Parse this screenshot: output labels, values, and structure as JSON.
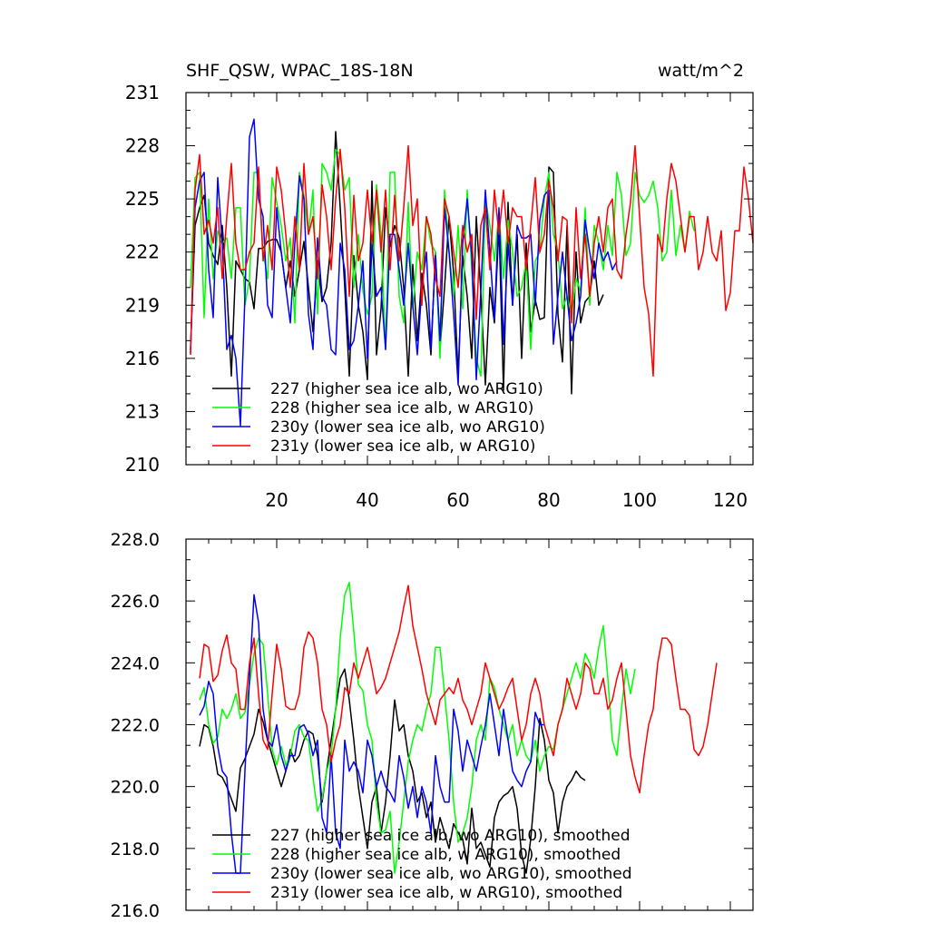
{
  "chart_data": [
    {
      "type": "line",
      "title": "SHF_QSW, WPAC_18S-18N",
      "units_label": "watt/m^2",
      "xlim": [
        0,
        125
      ],
      "ylim": [
        210,
        231
      ],
      "xticks": [
        20,
        40,
        60,
        80,
        100,
        120
      ],
      "xtick_labels": [
        "20",
        "40",
        "60",
        "80",
        "100",
        "120"
      ],
      "yticks": [
        210,
        213,
        216,
        219,
        222,
        225,
        228,
        231
      ],
      "ytick_labels": [
        "210",
        "213",
        "216",
        "219",
        "222",
        "225",
        "228",
        "231"
      ],
      "legend_position": "bottom-left",
      "series": [
        {
          "name": "227 (higher sea ice alb, wo ARG10)",
          "color": "#000000",
          "x_start": 1,
          "values": [
            216.5,
            223.5,
            224.5,
            225.2,
            222.5,
            221.8,
            221.3,
            223.5,
            220.0,
            215.0,
            221.5,
            221.0,
            220.5,
            220.3,
            218.8,
            222.2,
            222.2,
            222.6,
            222.7,
            222.7,
            222.0,
            220.0,
            221.5,
            219.5,
            221.0,
            222.6,
            220.0,
            217.5,
            221.5,
            219.2,
            220.0,
            222.5,
            228.8,
            224.5,
            220.0,
            215.0,
            221.8,
            219.0,
            217.5,
            214.8,
            226.0,
            216.2,
            218.8,
            224.5,
            222.3,
            223.5,
            222.8,
            220.0,
            215.0,
            221.3,
            217.0,
            220.8,
            219.0,
            216.2,
            222.0,
            216.5,
            220.0,
            224.0,
            220.8,
            215.0,
            221.8,
            219.5,
            216.0,
            224.0,
            219.7,
            214.5,
            220.0,
            218.0,
            223.5,
            214.2,
            224.8,
            219.0,
            223.0,
            216.0,
            222.5,
            217.5,
            219.3,
            218.2,
            218.3,
            226.8,
            226.5,
            218.5,
            215.8,
            223.5,
            214.0,
            222.0,
            218.0,
            219.2,
            219.5,
            221.5,
            219.0,
            219.6
          ]
        },
        {
          "name": "228 (higher sea ice alb, w ARG10)",
          "color": "#00ff00",
          "x_start": 1,
          "values": [
            220.0,
            226.2,
            226.5,
            218.3,
            225.0,
            220.5,
            223.2,
            222.5,
            222.8,
            220.5,
            224.5,
            224.5,
            219.0,
            220.5,
            226.5,
            226.5,
            222.0,
            220.5,
            226.2,
            224.8,
            223.5,
            221.5,
            222.8,
            218.0,
            226.5,
            225.2,
            223.0,
            225.5,
            218.5,
            227.0,
            226.5,
            225.5,
            227.8,
            227.5,
            225.5,
            226.2,
            220.0,
            223.0,
            219.8,
            218.5,
            219.5,
            225.8,
            223.0,
            216.5,
            226.5,
            226.5,
            219.5,
            218.0,
            224.8,
            218.8,
            222.0,
            221.0,
            224.0,
            222.5,
            222.0,
            216.0,
            225.5,
            222.0,
            219.5,
            223.5,
            218.8,
            225.5,
            221.0,
            216.0,
            215.0,
            225.0,
            223.5,
            221.5,
            224.3,
            220.5,
            223.8,
            222.0,
            219.5,
            220.0,
            221.5,
            216.5,
            221.5,
            222.0,
            225.0,
            226.5,
            223.0,
            222.0,
            218.8,
            219.5,
            218.5,
            220.5,
            219.8,
            224.5,
            219.0,
            223.5,
            222.5,
            221.0,
            223.5,
            221.8,
            226.5,
            225.2,
            221.8,
            222.5,
            226.5,
            225.2,
            224.8,
            225.2,
            226.0,
            224.5,
            221.5,
            222.0,
            225.5,
            221.8,
            223.5,
            222.0,
            224.3,
            223.2
          ]
        },
        {
          "name": "230y (lower sea ice alb, wo ARG10)",
          "color": "#0000ff",
          "x_start": 1,
          "values": [
            216.3,
            224.5,
            226.0,
            226.5,
            221.0,
            218.3,
            226.2,
            222.5,
            216.5,
            217.3,
            216.0,
            212.2,
            219.5,
            228.5,
            229.5,
            225.0,
            224.0,
            219.0,
            218.3,
            224.5,
            222.0,
            220.0,
            218.0,
            222.5,
            226.3,
            225.0,
            218.5,
            216.5,
            222.8,
            219.5,
            219.0,
            216.5,
            216.2,
            222.5,
            221.0,
            216.5,
            217.0,
            219.0,
            221.5,
            216.0,
            222.5,
            219.5,
            220.0,
            216.5,
            223.0,
            223.0,
            221.0,
            219.0,
            222.5,
            219.0,
            216.2,
            220.0,
            222.0,
            216.5,
            221.8,
            217.0,
            224.5,
            222.0,
            218.5,
            214.5,
            222.5,
            225.0,
            221.8,
            214.8,
            219.8,
            225.5,
            222.0,
            218.2,
            224.5,
            216.8,
            222.5,
            219.0,
            223.5,
            222.8,
            222.8,
            223.0,
            219.0,
            223.8,
            225.2,
            225.5,
            216.8,
            219.5,
            222.0,
            219.5,
            217.0,
            218.0,
            219.5,
            223.8,
            222.0,
            220.5,
            222.5,
            221.5,
            222.0,
            221.0,
            221.5
          ]
        },
        {
          "name": "231y (lower sea ice alb, w ARG10)",
          "color": "#ff0000",
          "x_start": 1,
          "values": [
            216.2,
            225.5,
            227.5,
            223.0,
            223.8,
            222.5,
            224.5,
            220.5,
            224.0,
            227.0,
            222.5,
            221.0,
            221.0,
            222.0,
            222.5,
            226.8,
            221.5,
            223.5,
            221.0,
            226.8,
            225.5,
            223.0,
            220.0,
            224.0,
            221.0,
            227.0,
            223.0,
            224.0,
            220.5,
            225.8,
            224.0,
            221.0,
            225.0,
            227.8,
            224.5,
            219.5,
            225.2,
            221.5,
            222.5,
            225.5,
            222.5,
            225.5,
            222.0,
            225.5,
            221.0,
            225.2,
            221.5,
            224.5,
            228.0,
            223.5,
            225.0,
            219.0,
            224.0,
            223.0,
            220.5,
            219.5,
            225.0,
            224.0,
            222.0,
            220.0,
            223.5,
            222.0,
            223.0,
            218.2,
            223.5,
            224.5,
            221.0,
            225.5,
            223.0,
            225.5,
            222.5,
            224.5,
            224.0,
            224.0,
            221.0,
            223.5,
            226.2,
            222.0,
            223.0,
            226.0,
            224.5,
            221.5,
            224.0,
            223.8,
            218.0,
            224.5,
            220.5,
            223.0,
            219.5,
            222.5,
            224.0,
            222.0,
            224.5,
            225.0,
            221.0,
            220.5,
            223.0,
            224.8,
            228.0,
            224.0,
            220.0,
            218.5,
            215.0,
            223.0,
            222.0,
            225.0,
            227.0,
            226.0,
            224.0,
            222.0,
            224.0,
            224.0,
            221.0,
            222.0,
            224.0,
            222.0,
            221.5,
            223.2,
            218.7,
            219.7,
            223.2,
            223.2,
            226.8,
            225.0,
            222.5
          ]
        }
      ],
      "legend": [
        {
          "label": "227 (higher sea ice alb, wo ARG10)",
          "color": "#000000"
        },
        {
          "label": "228 (higher sea ice alb, w ARG10)",
          "color": "#00ff00"
        },
        {
          "label": "230y (lower sea ice alb, wo ARG10)",
          "color": "#0000ff"
        },
        {
          "label": "231y (lower sea ice alb, w ARG10)",
          "color": "#ff0000"
        }
      ]
    },
    {
      "type": "line",
      "title": "",
      "xlim": [
        0,
        125
      ],
      "ylim": [
        216,
        228
      ],
      "xticks": [
        20,
        40,
        60,
        80,
        100,
        120
      ],
      "xtick_labels": [],
      "yticks": [
        216,
        218,
        220,
        222,
        224,
        226,
        228
      ],
      "ytick_labels": [
        "216.0",
        "218.0",
        "220.0",
        "222.0",
        "224.0",
        "226.0",
        "228.0"
      ],
      "legend_position": "bottom-left",
      "series": [
        {
          "name": "227 (higher sea ice alb, wo ARG10), smoothed",
          "color": "#000000",
          "x_start": 3,
          "values": [
            221.3,
            222.0,
            221.9,
            221.3,
            220.4,
            220.3,
            220.0,
            219.6,
            219.2,
            220.6,
            220.9,
            221.3,
            221.7,
            222.5,
            222.1,
            221.5,
            221.0,
            220.5,
            220.0,
            220.5,
            221.2,
            220.8,
            221.0,
            221.5,
            221.8,
            221.7,
            221.0,
            219.5,
            220.5,
            221.5,
            222.5,
            223.5,
            223.8,
            222.8,
            221.5,
            220.0,
            219.0,
            218.0,
            219.5,
            220.0,
            218.5,
            219.5,
            221.0,
            222.8,
            221.8,
            222.0,
            221.0,
            220.5,
            219.5,
            219.8,
            219.0,
            219.5,
            218.2,
            219.0,
            218.5,
            218.0,
            218.8,
            218.5,
            218.3,
            217.5,
            219.3,
            218.0,
            218.2,
            217.8,
            217.4,
            219.0,
            219.5,
            219.7,
            219.8,
            220.0,
            219.3,
            217.8,
            217.2,
            218.3,
            220.0,
            222.2,
            221.5,
            220.2,
            219.8,
            218.5,
            219.5,
            220.0,
            220.2,
            220.5,
            220.3,
            220.2
          ]
        },
        {
          "name": "228 (higher sea ice alb, w ARG10), smoothed",
          "color": "#00ff00",
          "x_start": 3,
          "values": [
            222.8,
            223.2,
            222.0,
            221.4,
            221.6,
            222.5,
            222.2,
            222.5,
            223.0,
            222.2,
            222.4,
            223.3,
            224.3,
            224.8,
            224.6,
            223.0,
            221.2,
            220.7,
            221.3,
            220.7,
            221.0,
            221.8,
            222.0,
            221.6,
            221.5,
            220.3,
            219.2,
            219.6,
            220.5,
            221.0,
            222.5,
            224.8,
            226.2,
            226.6,
            225.0,
            223.3,
            223.1,
            222.0,
            221.5,
            219.5,
            218.5,
            218.6,
            219.2,
            217.2,
            218.2,
            219.5,
            220.8,
            221.5,
            222.0,
            221.8,
            222.5,
            223.0,
            224.5,
            224.5,
            223.0,
            221.5,
            219.5,
            218.2,
            218.5,
            219.0,
            220.0,
            221.5,
            222.0,
            221.5,
            223.5,
            223.2,
            222.5,
            222.0,
            221.5,
            222.0,
            221.0,
            221.5,
            221.0,
            220.8,
            221.5,
            220.5,
            221.0,
            221.3,
            221.2,
            222.0,
            222.5,
            223.0,
            223.5,
            224.0,
            223.5,
            224.3,
            224.0,
            223.5,
            224.5,
            225.2,
            223.5,
            221.5,
            221.0,
            222.5,
            223.8,
            223.0,
            223.8
          ]
        },
        {
          "name": "230y (lower sea ice alb, wo ARG10), smoothed",
          "color": "#0000ff",
          "x_start": 3,
          "values": [
            222.3,
            222.6,
            223.4,
            223.0,
            221.3,
            220.5,
            220.3,
            218.5,
            217.2,
            217.2,
            220.5,
            223.5,
            226.2,
            225.3,
            222.5,
            221.5,
            221.3,
            222.0,
            221.0,
            220.5,
            221.0,
            221.0,
            221.9,
            222.0,
            221.7,
            221.0,
            221.5,
            219.0,
            218.5,
            221.0,
            218.5,
            218.0,
            221.5,
            220.5,
            220.8,
            220.5,
            219.8,
            221.5,
            221.0,
            220.0,
            220.5,
            220.0,
            219.8,
            219.5,
            221.0,
            220.3,
            219.3,
            220.0,
            219.0,
            220.0,
            219.5,
            218.5,
            221.0,
            220.0,
            219.5,
            219.5,
            222.5,
            221.8,
            220.5,
            221.5,
            221.0,
            220.5,
            221.3,
            222.0,
            223.0,
            222.0,
            221.0,
            222.5,
            221.5,
            220.5,
            220.2,
            220.0,
            220.5,
            220.8,
            222.4,
            222.0,
            222.0
          ]
        },
        {
          "name": "231y (lower sea ice alb, w ARG10), smoothed",
          "color": "#ff0000",
          "x_start": 3,
          "values": [
            223.5,
            224.6,
            224.5,
            223.4,
            223.6,
            224.4,
            224.9,
            224.0,
            223.8,
            222.5,
            222.5,
            224.0,
            224.8,
            223.0,
            221.5,
            221.2,
            223.0,
            224.6,
            223.8,
            222.6,
            222.5,
            222.5,
            223.0,
            224.5,
            225.0,
            224.8,
            224.0,
            222.5,
            222.0,
            220.8,
            221.5,
            222.0,
            223.2,
            223.0,
            224.0,
            223.5,
            224.0,
            224.5,
            223.8,
            223.0,
            223.2,
            223.5,
            224.0,
            224.5,
            225.0,
            225.8,
            226.5,
            225.2,
            224.5,
            223.8,
            223.0,
            222.5,
            222.0,
            222.8,
            223.0,
            223.2,
            223.0,
            223.5,
            222.8,
            222.5,
            222.0,
            222.5,
            223.0,
            224.0,
            223.5,
            223.0,
            222.5,
            222.8,
            223.2,
            223.5,
            222.5,
            221.5,
            222.0,
            223.0,
            223.5,
            223.0,
            222.0,
            221.5,
            221.0,
            222.0,
            222.5,
            223.5,
            223.0,
            222.5,
            223.0,
            224.0,
            223.8,
            223.0,
            223.0,
            223.5,
            222.5,
            222.8,
            223.5,
            224.0,
            222.5,
            221.0,
            220.3,
            219.8,
            221.0,
            222.0,
            222.5,
            224.0,
            224.8,
            224.8,
            224.6,
            223.5,
            222.5,
            222.5,
            222.3,
            221.2,
            221.0,
            221.3,
            222.0,
            223.0,
            224.0
          ]
        }
      ],
      "legend": [
        {
          "label": "227 (higher sea ice alb, wo ARG10), smoothed",
          "color": "#000000"
        },
        {
          "label": "228 (higher sea ice alb, w ARG10), smoothed",
          "color": "#00ff00"
        },
        {
          "label": "230y (lower sea ice alb, wo ARG10), smoothed",
          "color": "#0000ff"
        },
        {
          "label": "231y (lower sea ice alb, w ARG10), smoothed",
          "color": "#ff0000"
        }
      ]
    }
  ]
}
